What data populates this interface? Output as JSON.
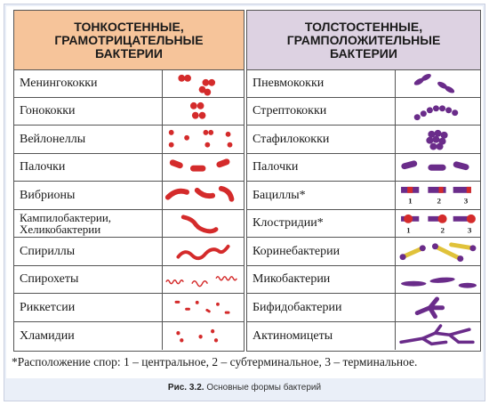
{
  "left_header": "ТОНКОСТЕННЫЕ,\nГРАМОТРИЦАТЕЛЬНЫЕ\nБАКТЕРИИ",
  "right_header": "ТОЛСТОСТЕННЫЕ,\nГРАМПОЛОЖИТЕЛЬНЫЕ\nБАКТЕРИИ",
  "left_rows": [
    "Менингококки",
    "Гонококки",
    "Вейлонеллы",
    "Палочки",
    "Вибрионы",
    "Кампилобактерии,\nХеликобактерии",
    "Спириллы",
    "Спирохеты",
    "Риккетсии",
    "Хламидии"
  ],
  "right_rows": [
    "Пневмококки",
    "Стрептококки",
    "Стафилококки",
    "Палочки",
    "Бациллы*",
    "Клостридии*",
    "Коринебактерии",
    "Микобактерии",
    "Бифидобактерии",
    "Актиномицеты"
  ],
  "spore_labels": [
    "1",
    "2",
    "3"
  ],
  "footnote": "*Расположение спор: 1 – центральное,  2 – субтерминальное, 3 – терминальное.",
  "caption_label": "Рис. 3.2.",
  "caption_text": " Основные формы бактерий",
  "colors": {
    "left_header": "#f6c49a",
    "right_header": "#ddd2e2",
    "gram_negative": "#d42b2b",
    "gram_positive": "#6a2c8a",
    "spore": "#e0c23a",
    "frame": "#eaeff8"
  }
}
